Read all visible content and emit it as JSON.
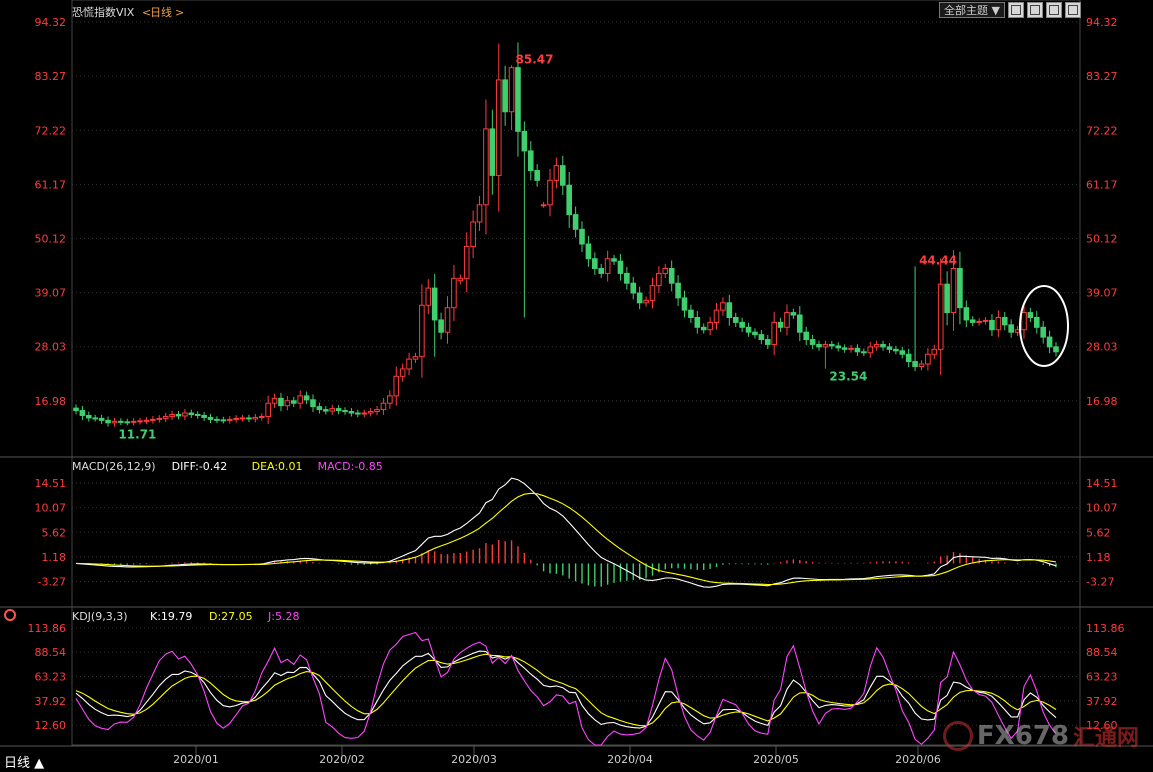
{
  "chart_data": [
    {
      "type": "candlestick",
      "title": "恐慌指数VIX",
      "period": "日线",
      "ylim": [
        5.93,
        94.32
      ],
      "y_ticks": [
        94.32,
        83.27,
        72.22,
        61.17,
        50.12,
        39.07,
        28.03,
        16.98
      ],
      "x_ticks": [
        "2020/01",
        "2020/02",
        "2020/03",
        "2020/04",
        "2020/05",
        "2020/06"
      ],
      "annotations": [
        {
          "text": "85.47",
          "kind": "high"
        },
        {
          "text": "44.44",
          "kind": "high"
        },
        {
          "text": "11.71",
          "kind": "low"
        },
        {
          "text": "23.54",
          "kind": "low"
        }
      ],
      "close": [
        15.0,
        14.0,
        13.5,
        13.4,
        13.0,
        12.5,
        12.8,
        12.7,
        12.6,
        12.8,
        12.9,
        13.0,
        13.2,
        13.4,
        13.8,
        14.2,
        13.9,
        14.5,
        14.2,
        14.0,
        13.6,
        13.2,
        13.1,
        13.0,
        13.2,
        13.4,
        13.5,
        13.3,
        13.6,
        13.8,
        16.5,
        17.5,
        16.0,
        17.0,
        16.5,
        18.0,
        17.2,
        15.8,
        15.2,
        14.9,
        15.4,
        15.0,
        14.8,
        14.5,
        14.3,
        14.5,
        14.8,
        15.2,
        16.5,
        18.0,
        22.0,
        23.5,
        25.5,
        26.0,
        36.5,
        40.0,
        33.5,
        31.0,
        36.0,
        42.0,
        42.0,
        48.5,
        53.5,
        57.0,
        72.5,
        63.0,
        82.5,
        76.0,
        85.0,
        72.0,
        68.0,
        64.0,
        62.0,
        57.0,
        62.0,
        65.0,
        61.0,
        55.0,
        52.0,
        49.0,
        46.0,
        44.0,
        43.0,
        46.0,
        45.5,
        43.0,
        41.0,
        39.0,
        37.0,
        37.5,
        40.5,
        43.0,
        44.0,
        41.0,
        38.0,
        35.5,
        34.0,
        32.0,
        31.5,
        33.0,
        35.5,
        37.0,
        34.0,
        33.0,
        32.0,
        31.0,
        30.5,
        29.5,
        28.5,
        33.0,
        32.0,
        35.0,
        34.5,
        31.0,
        29.5,
        28.5,
        28.0,
        28.5,
        28.2,
        27.8,
        27.5,
        27.7,
        27.0,
        26.8,
        28.0,
        28.5,
        28.0,
        27.5,
        27.2,
        26.5,
        25.0,
        24.0,
        24.5,
        26.5,
        27.5,
        40.8,
        35.0,
        44.0,
        36.0,
        33.5,
        33.0,
        33.2,
        33.4,
        31.5,
        34.0,
        32.5,
        31.0,
        31.5,
        35.0,
        34.0,
        32.0,
        30.0,
        28.0,
        27.0
      ],
      "open": [
        15.5,
        15.0,
        14.0,
        13.5,
        13.4,
        13.0,
        12.5,
        12.8,
        12.7,
        12.6,
        12.8,
        12.9,
        13.0,
        13.2,
        13.4,
        13.8,
        14.2,
        13.9,
        14.5,
        14.2,
        14.0,
        13.6,
        13.2,
        13.1,
        13.0,
        13.2,
        13.4,
        13.5,
        13.3,
        13.6,
        13.8,
        16.5,
        17.5,
        16.0,
        17.0,
        16.5,
        18.0,
        17.2,
        15.8,
        15.2,
        14.9,
        15.4,
        15.0,
        14.8,
        14.5,
        14.3,
        14.5,
        14.8,
        15.2,
        16.5,
        18.0,
        22.0,
        23.5,
        25.5,
        26.0,
        36.5,
        40.0,
        33.5,
        31.0,
        36.0,
        41.5,
        42.0,
        48.5,
        53.5,
        57.0,
        72.5,
        63.0,
        82.5,
        76.0,
        85.0,
        72.0,
        68.0,
        64.0,
        57.0,
        57.0,
        62.0,
        65.0,
        61.0,
        55.0,
        52.0,
        49.0,
        46.0,
        44.0,
        43.0,
        46.0,
        45.5,
        43.0,
        41.0,
        39.0,
        37.0,
        37.5,
        40.5,
        43.0,
        44.0,
        41.0,
        38.0,
        35.5,
        34.0,
        32.0,
        31.5,
        33.0,
        35.5,
        37.0,
        34.0,
        33.0,
        32.0,
        31.0,
        30.5,
        29.5,
        28.5,
        33.0,
        32.0,
        35.0,
        34.5,
        31.0,
        29.5,
        28.5,
        28.0,
        28.5,
        28.2,
        27.8,
        27.5,
        27.7,
        27.0,
        26.8,
        28.0,
        28.5,
        28.0,
        27.5,
        27.2,
        26.5,
        25.0,
        24.0,
        24.5,
        26.5,
        27.5,
        40.8,
        35.0,
        44.0,
        36.0,
        33.5,
        33.0,
        33.2,
        33.4,
        31.5,
        34.0,
        32.5,
        31.0,
        31.5,
        35.0,
        34.0,
        32.0,
        30.0,
        28.0
      ]
    },
    {
      "type": "line",
      "title": "MACD(26,12,9)",
      "legend": [
        {
          "label": "DIFF:-0.42",
          "color": "#ffffff"
        },
        {
          "label": "DEA:0.01",
          "color": "#ffff00"
        },
        {
          "label": "MACD:-0.85",
          "color": "#ff44ff"
        }
      ],
      "ylim": [
        -7.5,
        16.5
      ],
      "y_ticks": [
        14.51,
        10.07,
        5.62,
        1.18,
        -3.27
      ]
    },
    {
      "type": "line",
      "title": "KDJ(9,3,3)",
      "legend": [
        {
          "label": "K:19.79",
          "color": "#ffffff"
        },
        {
          "label": "D:27.05",
          "color": "#ffff00"
        },
        {
          "label": "J:5.28",
          "color": "#ff44ff"
        }
      ],
      "ylim": [
        -8,
        120
      ],
      "y_ticks": [
        113.86,
        88.54,
        63.23,
        37.92,
        12.6
      ]
    }
  ],
  "header": {
    "title": "恐慌指数VIX",
    "period_bracket_left": "<",
    "period": "日线",
    "period_bracket_right": ">",
    "theme_button": "全部主题"
  },
  "footer": {
    "status": "日线 ▲",
    "watermark": "FX678",
    "watermark_cn": "汇通网"
  },
  "colors": {
    "up": "#ff3b3b",
    "down": "#3fcf6f",
    "axis": "#ff3b3b",
    "grid": "#333333",
    "diff": "#ffffff",
    "dea": "#ffff00",
    "j": "#ff44ff"
  }
}
